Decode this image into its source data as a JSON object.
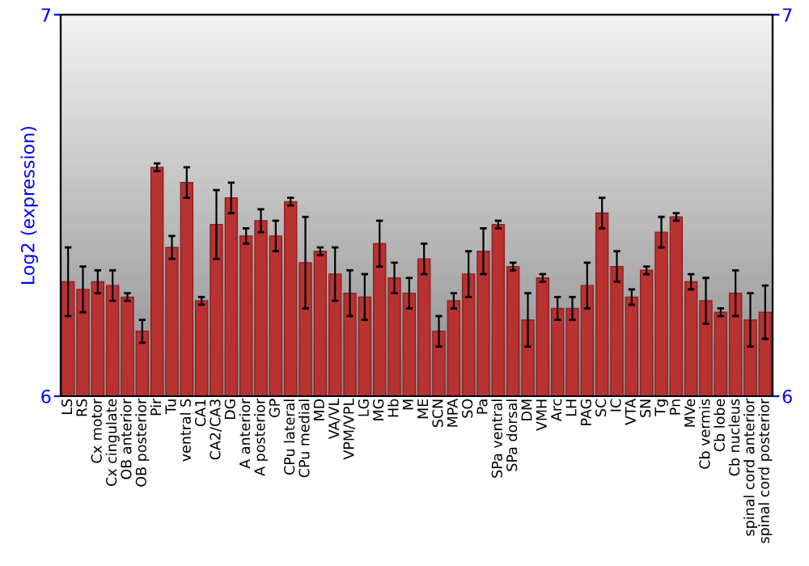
{
  "chart_data": {
    "type": "bar",
    "ylabel": "Log2 (expression)",
    "categories": [
      "LS",
      "RS",
      "Cx motor",
      "Cx cingulate",
      "OB anterior",
      "OB posterior",
      "Pir",
      "Tu",
      "ventral S",
      "CA1",
      "CA2/CA3",
      "DG",
      "A anterior",
      "A posterior",
      "GP",
      "CPu lateral",
      "CPu medial",
      "MD",
      "VA/VL",
      "VPM/VPL",
      "LG",
      "MG",
      "Hb",
      "M",
      "ME",
      "SCN",
      "MPA",
      "SO",
      "Pa",
      "SPa ventral",
      "SPa dorsal",
      "DM",
      "VMH",
      "Arc",
      "LH",
      "PAG",
      "SC",
      "IC",
      "VTA",
      "SN",
      "Tg",
      "Pn",
      "MVe",
      "Cb vermis",
      "Cb lobe",
      "Cb nucleus",
      "spinal cord anterior",
      "spinal cord posterior"
    ],
    "values": [
      6.3,
      6.28,
      6.3,
      6.29,
      6.26,
      6.17,
      6.6,
      6.39,
      6.56,
      6.25,
      6.45,
      6.52,
      6.42,
      6.46,
      6.42,
      6.51,
      6.35,
      6.38,
      6.32,
      6.27,
      6.26,
      6.4,
      6.31,
      6.27,
      6.36,
      6.17,
      6.25,
      6.32,
      6.38,
      6.45,
      6.34,
      6.2,
      6.31,
      6.23,
      6.23,
      6.29,
      6.48,
      6.34,
      6.26,
      6.33,
      6.43,
      6.47,
      6.3,
      6.25,
      6.22,
      6.27,
      6.2,
      6.22
    ],
    "errors": [
      0.09,
      0.06,
      0.03,
      0.04,
      0.01,
      0.03,
      0.01,
      0.03,
      0.04,
      0.01,
      0.09,
      0.04,
      0.02,
      0.03,
      0.04,
      0.01,
      0.12,
      0.01,
      0.07,
      0.06,
      0.06,
      0.06,
      0.04,
      0.04,
      0.04,
      0.04,
      0.02,
      0.06,
      0.06,
      0.01,
      0.01,
      0.07,
      0.01,
      0.03,
      0.03,
      0.06,
      0.04,
      0.04,
      0.02,
      0.01,
      0.04,
      0.01,
      0.02,
      0.06,
      0.01,
      0.06,
      0.07,
      0.07
    ],
    "color": "#b83232",
    "ylim": [
      6,
      7
    ],
    "yticks": [
      6,
      7
    ],
    "y2lim": [
      6,
      7
    ],
    "y2ticks": [
      6,
      7
    ],
    "grid": false,
    "legend": false
  }
}
